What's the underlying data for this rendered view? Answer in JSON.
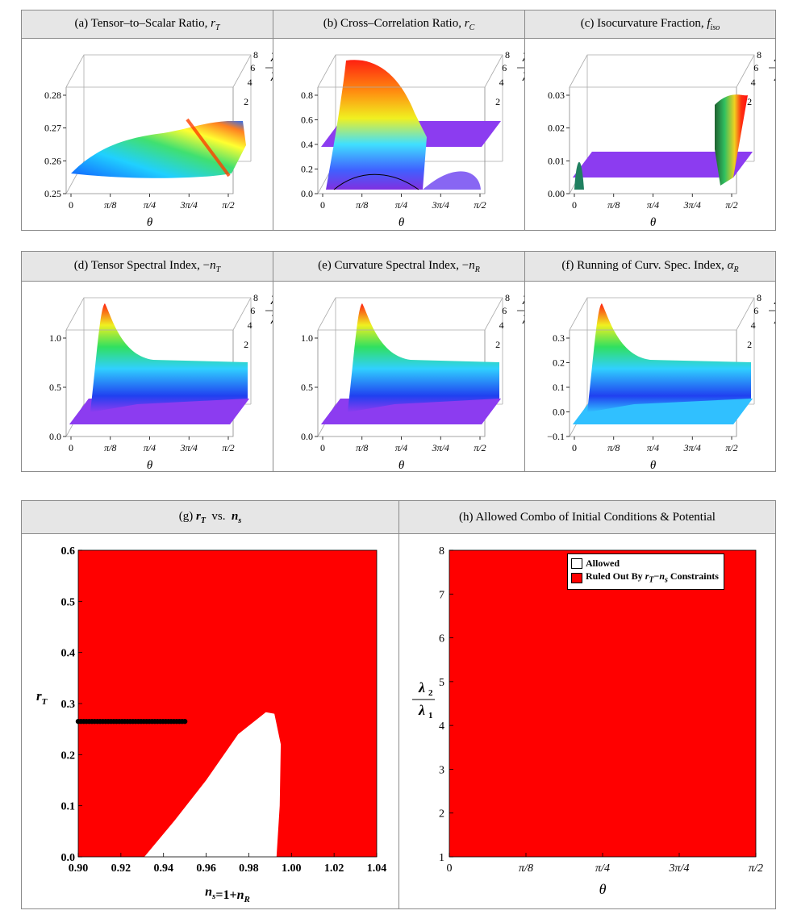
{
  "panels": [
    {
      "id": "a",
      "title": "(a)  Tensor–to–Scalar Ratio, ",
      "title_var": "r",
      "title_sub": "T",
      "ylim": [
        0.25,
        0.28
      ],
      "yticks": [
        "0.25",
        "0.26",
        "0.27",
        "0.28"
      ]
    },
    {
      "id": "b",
      "title": "(b)  Cross–Correlation Ratio, ",
      "title_var": "r",
      "title_sub": "C",
      "ylim": [
        0.0,
        0.8
      ],
      "yticks": [
        "0.0",
        "0.2",
        "0.4",
        "0.6",
        "0.8"
      ]
    },
    {
      "id": "c",
      "title": "(c)  Isocurvature Fraction, ",
      "title_var": "f",
      "title_sub": "iso",
      "ylim": [
        0.0,
        0.03
      ],
      "yticks": [
        "0.00",
        "0.01",
        "0.02",
        "0.03"
      ]
    },
    {
      "id": "d",
      "title": "(d)  Tensor Spectral Index, −",
      "title_var": "n",
      "title_sub": "T",
      "ylim": [
        0.0,
        1.0
      ],
      "yticks": [
        "0.0",
        "0.5",
        "1.0"
      ]
    },
    {
      "id": "e",
      "title": "(e)  Curvature Spectral Index, −",
      "title_var": "n",
      "title_sub": "R",
      "ylim": [
        0.0,
        1.0
      ],
      "yticks": [
        "0.0",
        "0.5",
        "1.0"
      ]
    },
    {
      "id": "f",
      "title": "(f)  Running of Curv. Spec. Index, ",
      "title_var": "α",
      "title_sub": "R",
      "ylim": [
        -0.1,
        0.3
      ],
      "yticks": [
        "−0.1",
        "0.0",
        "0.1",
        "0.2",
        "0.3"
      ]
    }
  ],
  "theta_ticks": [
    "0",
    "π/8",
    "π/4",
    "3π/4",
    "π/2"
  ],
  "lambda_ticks": [
    "8",
    "6",
    "4",
    "2"
  ],
  "theta_label": "θ",
  "lambda_label_num": "λ",
  "lambda_label_num_sub": "2",
  "lambda_label_den": "λ",
  "lambda_label_den_sub": "1",
  "panel_g": {
    "title_prefix": "(g)  ",
    "title_v1": "r",
    "title_v1_sub": "T",
    "title_mid": "  vs.  ",
    "title_v2": "n",
    "title_v2_sub": "s",
    "xlabel_a": "n",
    "xlabel_a_sub": "s",
    "xlabel_b": "=1+",
    "xlabel_c": "n",
    "xlabel_c_sub": "R",
    "ylabel": "r",
    "ylabel_sub": "T"
  },
  "panel_h": {
    "title": "(h)  Allowed Combo of Initial Conditions & Potential",
    "legend_allowed": "Allowed",
    "legend_ruled_a": "Ruled Out By ",
    "legend_ruled_v1": "r",
    "legend_ruled_v1_sub": "T",
    "legend_ruled_b": "−",
    "legend_ruled_v2": "n",
    "legend_ruled_v2_sub": "s",
    "legend_ruled_c": " Constraints"
  },
  "colors": {
    "ruled_out": "#ff0000",
    "allowed": "#ffffff",
    "points": "#000000"
  },
  "chart_data": [
    {
      "type": "scatter",
      "title": "(g) rT vs. ns",
      "xlabel": "ns=1+nR",
      "ylabel": "rT",
      "xlim": [
        0.9,
        1.04
      ],
      "ylim": [
        0.0,
        0.6
      ],
      "xticks": [
        0.9,
        0.92,
        0.94,
        0.96,
        0.98,
        1.0,
        1.02,
        1.04
      ],
      "yticks": [
        0.0,
        0.1,
        0.2,
        0.3,
        0.4,
        0.5,
        0.6
      ],
      "allowed_region_boundary": [
        [
          0.931,
          0.0
        ],
        [
          0.945,
          0.07
        ],
        [
          0.96,
          0.15
        ],
        [
          0.975,
          0.24
        ],
        [
          0.988,
          0.283
        ],
        [
          0.992,
          0.28
        ],
        [
          0.995,
          0.22
        ],
        [
          0.9945,
          0.1
        ],
        [
          0.993,
          0.0
        ]
      ],
      "points": {
        "ns_range": [
          0.9,
          0.95
        ],
        "rT": 0.265
      }
    },
    {
      "type": "heatmap",
      "title": "(h) Allowed Combo of Initial Conditions & Potential",
      "xlabel": "θ",
      "ylabel": "λ2/λ1",
      "xticks": [
        "0",
        "π/8",
        "π/4",
        "3π/4",
        "π/2"
      ],
      "yticks": [
        1,
        2,
        3,
        4,
        5,
        6,
        7,
        8
      ],
      "ylim": [
        1,
        8
      ],
      "region": "Ruled Out By rT−ns Constraints (entire domain)"
    }
  ]
}
